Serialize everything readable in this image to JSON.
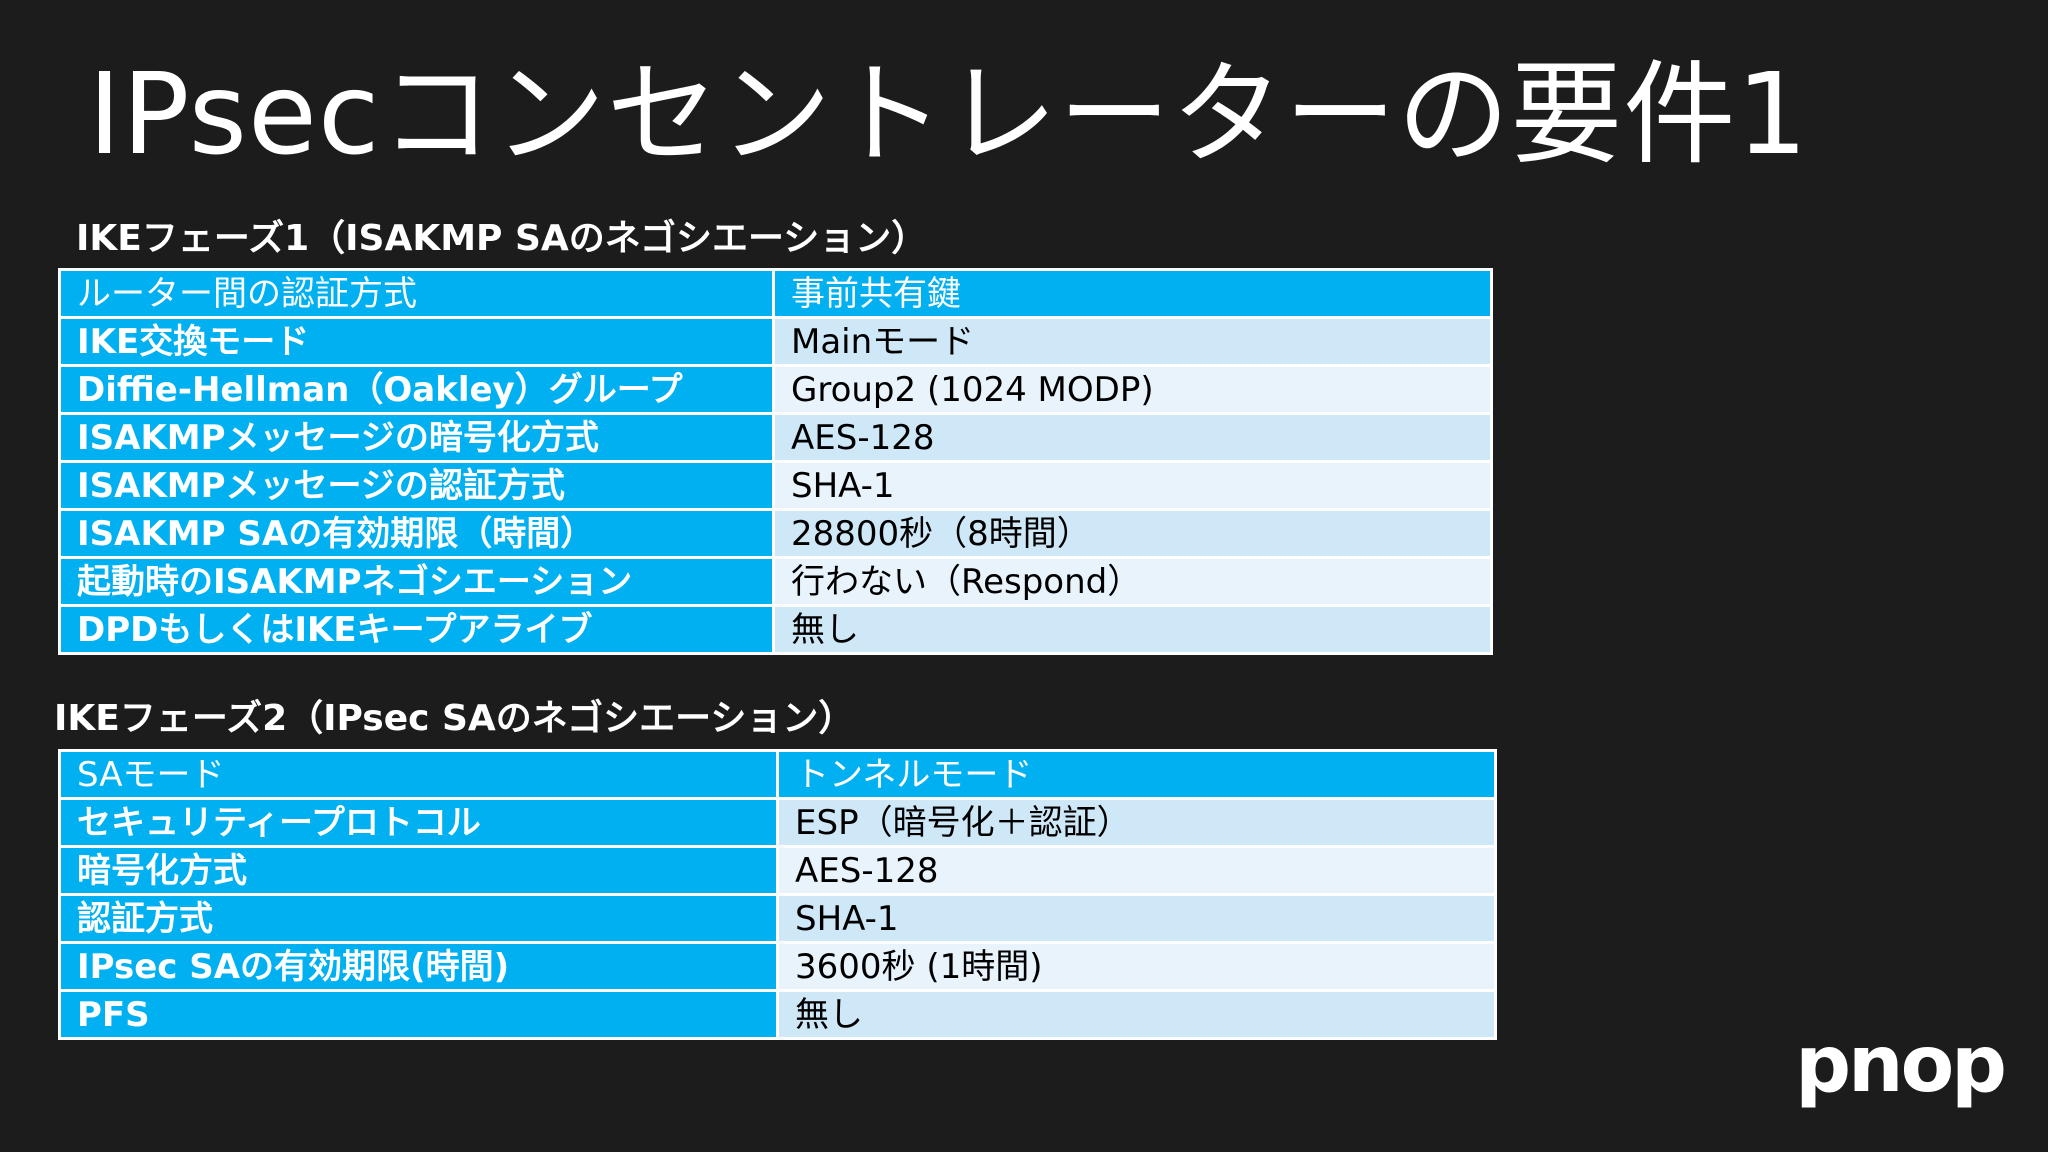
{
  "title": "IPsecコンセントレーターの要件1",
  "phase1": {
    "heading": "IKEフェーズ1（ISAKMP SAのネゴシエーション）",
    "rows": [
      {
        "key": "ルーター間の認証方式",
        "value": "事前共有鍵"
      },
      {
        "key": "IKE交換モード",
        "value": "Mainモード"
      },
      {
        "key": "Diffie-Hellman（Oakley）グループ",
        "value": "Group2 (1024 MODP)"
      },
      {
        "key": "ISAKMPメッセージの暗号化方式",
        "value": "AES-128"
      },
      {
        "key": "ISAKMPメッセージの認証方式",
        "value": "SHA-1"
      },
      {
        "key": "ISAKMP SAの有効期限（時間）",
        "value": "28800秒（8時間）"
      },
      {
        "key": "起動時のISAKMPネゴシエーション",
        "value": "行わない（Respond）"
      },
      {
        "key": "DPDもしくはIKEキープアライブ",
        "value": "無し"
      }
    ]
  },
  "phase2": {
    "heading": "IKEフェーズ2（IPsec SAのネゴシエーション）",
    "rows": [
      {
        "key": "SAモード",
        "value": "トンネルモード"
      },
      {
        "key": "セキュリティープロトコル",
        "value": "ESP（暗号化＋認証）"
      },
      {
        "key": "暗号化方式",
        "value": "AES-128"
      },
      {
        "key": "認証方式",
        "value": "SHA-1"
      },
      {
        "key": "IPsec SAの有効期限(時間)",
        "value": "3600秒 (1時間)"
      },
      {
        "key": "PFS",
        "value": "無し"
      }
    ]
  },
  "logo": {
    "text": "pnop"
  }
}
